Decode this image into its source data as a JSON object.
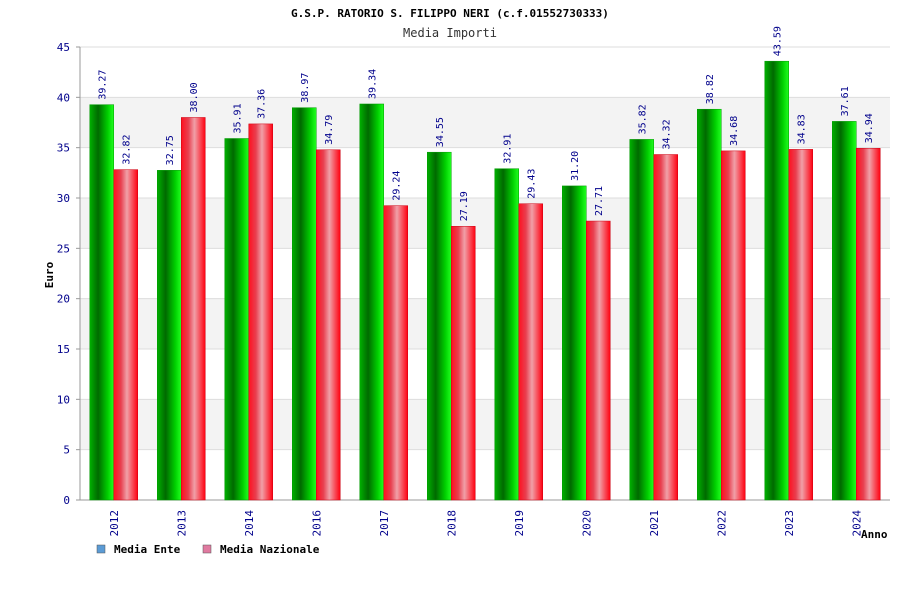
{
  "chart_data": {
    "type": "bar",
    "title": "G.S.P. RATORIO S. FILIPPO NERI (c.f.01552730333)",
    "subtitle": "Media Importi",
    "ylabel": "Euro",
    "xlabel": "Anno",
    "ylim": [
      0,
      45
    ],
    "yticks": [
      0,
      5,
      10,
      15,
      20,
      25,
      30,
      35,
      40,
      45
    ],
    "grid": "horizontal",
    "legend_position": "bottom-left",
    "categories": [
      "2012",
      "2013",
      "2014",
      "2016",
      "2017",
      "2018",
      "2019",
      "2020",
      "2021",
      "2022",
      "2023",
      "2024"
    ],
    "series": [
      {
        "name": "Media Ente",
        "legend_color": "#5b9bd5",
        "bar_color": "#00cc00",
        "values": [
          39.27,
          32.75,
          35.91,
          38.97,
          39.34,
          34.55,
          32.91,
          31.2,
          35.82,
          38.82,
          43.59,
          37.61
        ],
        "labels": [
          "39.27",
          "32.75",
          "35.91",
          "38.97",
          "39.34",
          "34.55",
          "32.91",
          "31.20",
          "35.82",
          "38.82",
          "43.59",
          "37.61"
        ]
      },
      {
        "name": "Media Nazionale",
        "legend_color": "#e07aa0",
        "bar_color": "#ee2233",
        "values": [
          32.82,
          38.0,
          37.36,
          34.79,
          29.24,
          27.19,
          29.43,
          27.71,
          34.32,
          34.68,
          34.83,
          34.94
        ],
        "labels": [
          "32.82",
          "38.00",
          "37.36",
          "34.79",
          "29.24",
          "27.19",
          "29.43",
          "27.71",
          "34.32",
          "34.68",
          "34.83",
          "34.94"
        ]
      }
    ]
  }
}
